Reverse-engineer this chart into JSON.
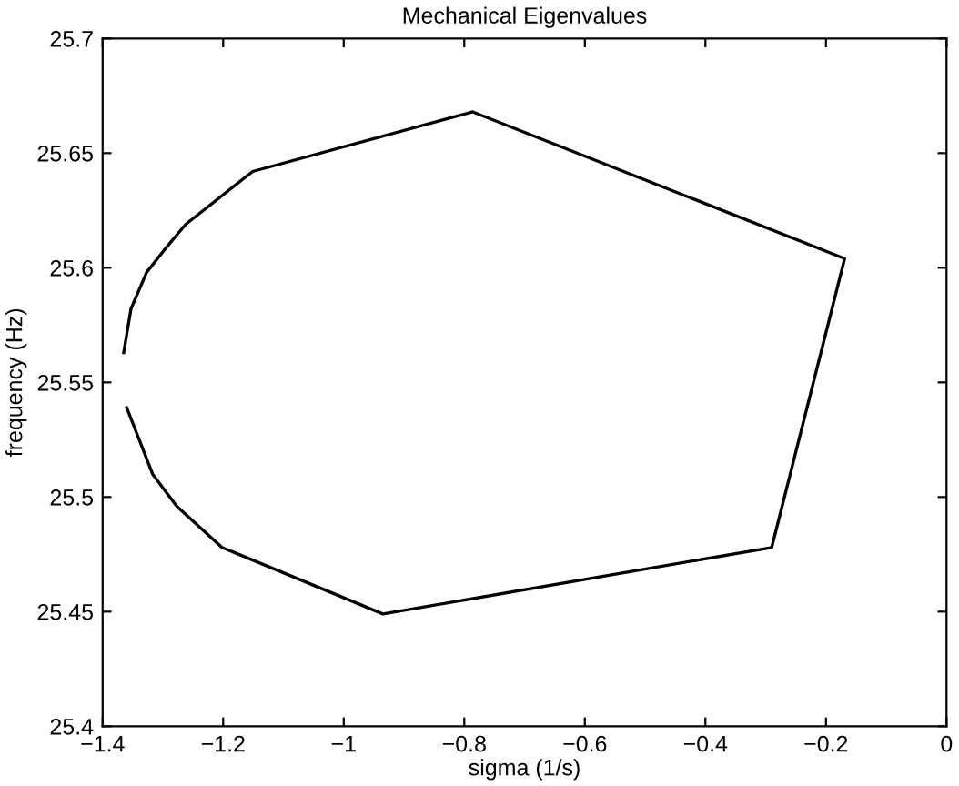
{
  "chart_data": {
    "type": "line",
    "title": "Mechanical Eigenvalues",
    "xlabel": "sigma (1/s)",
    "ylabel": "frequency (Hz)",
    "x": [
      -1.365,
      -1.353,
      -1.327,
      -1.297,
      -1.262,
      -1.151,
      -0.786,
      -0.169,
      -0.29,
      -0.935,
      -1.202,
      -1.277,
      -1.317,
      -1.36
    ],
    "series": [
      {
        "color": "#000000",
        "values": [
          25.563,
          25.582,
          25.598,
          25.608,
          25.619,
          25.642,
          25.668,
          25.604,
          25.478,
          25.449,
          25.478,
          25.496,
          25.51,
          25.539
        ]
      }
    ],
    "xlim": [
      -1.4,
      0
    ],
    "ylim": [
      25.4,
      25.7
    ],
    "xticks": [
      {
        "value": -1.4,
        "label": "−1.4"
      },
      {
        "value": -1.2,
        "label": "−1.2"
      },
      {
        "value": -1,
        "label": "−1"
      },
      {
        "value": -0.8,
        "label": "−0.8"
      },
      {
        "value": -0.6,
        "label": "−0.6"
      },
      {
        "value": -0.4,
        "label": "−0.4"
      },
      {
        "value": -0.2,
        "label": "−0.2"
      },
      0
    ],
    "yticks": [
      25.4,
      25.45,
      25.5,
      25.55,
      25.6,
      25.65,
      25.7
    ],
    "grid": false,
    "legend": false,
    "marker": "none",
    "line_style": "solid"
  }
}
